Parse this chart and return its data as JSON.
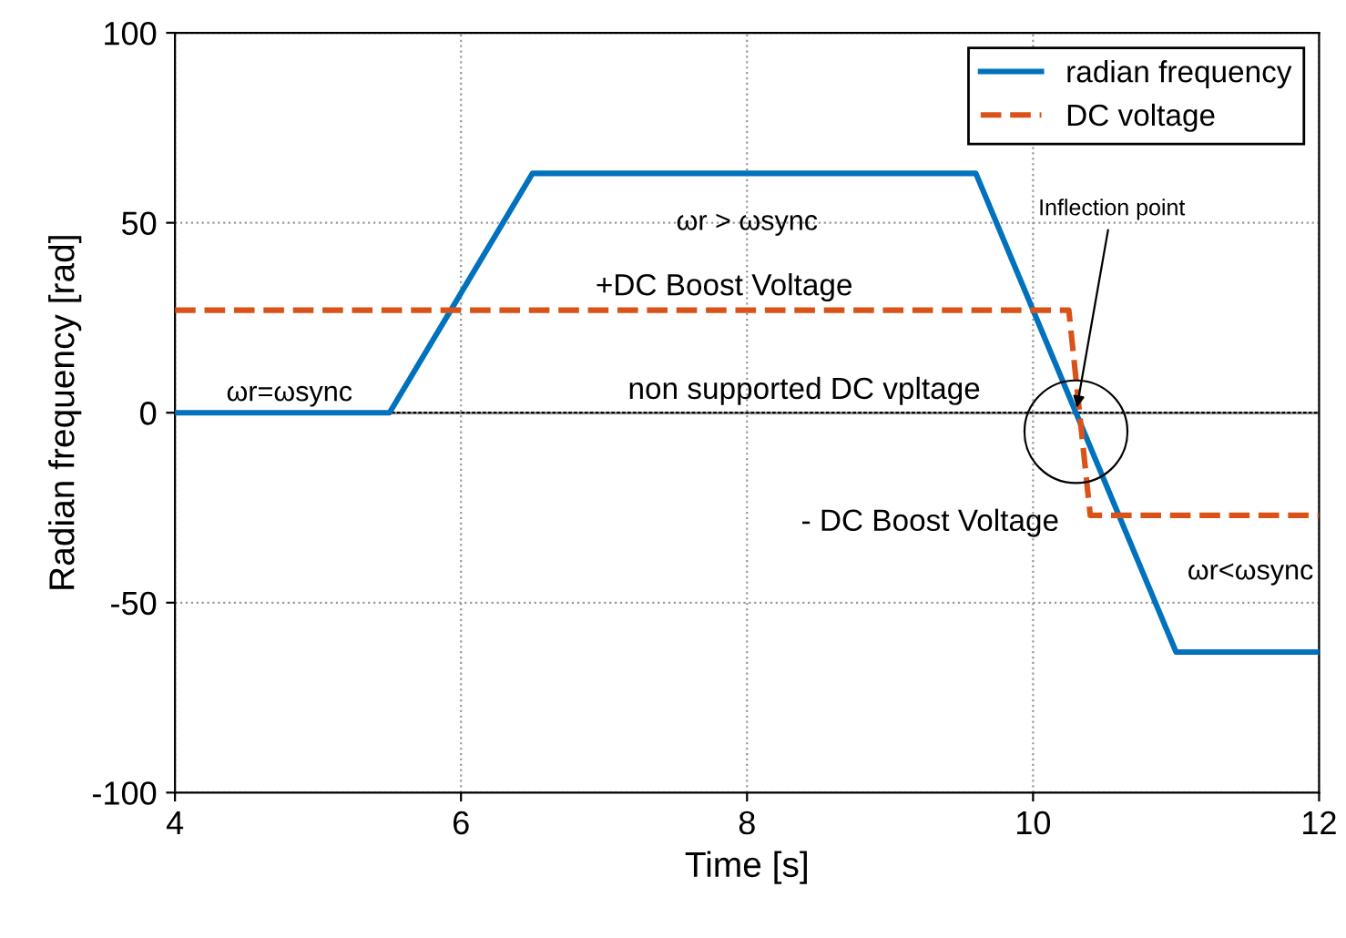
{
  "chart_data": {
    "type": "line",
    "xlabel": "Time [s]",
    "ylabel": "Radian frequency [rad]",
    "xlim": [
      4,
      12
    ],
    "ylim": [
      -100,
      100
    ],
    "xticks": [
      4,
      6,
      8,
      10,
      12
    ],
    "yticks": [
      -100,
      -50,
      0,
      50,
      100
    ],
    "grid": true,
    "legend": "top right",
    "series": [
      {
        "name": "radian frequency",
        "color": "#0072bd",
        "line_style": "solid",
        "x": [
          4,
          5.5,
          6.5,
          9.6,
          11,
          12
        ],
        "values": [
          0,
          0,
          63,
          63,
          -63,
          -63
        ]
      },
      {
        "name": "DC voltage",
        "color": "#d95319",
        "line_style": "dashed",
        "x": [
          4,
          10.25,
          10.4,
          12
        ],
        "values": [
          27,
          27,
          -27,
          -27
        ]
      }
    ],
    "ref_lines": [
      {
        "axis": "y",
        "value": 0,
        "label": "non supported DC vpltage",
        "color": "#000000"
      }
    ],
    "annotations": [
      "ωr=ωsync",
      "ωr > ωsync",
      "+DC Boost Voltage",
      "- DC Boost Voltage",
      "ωr<ωsync",
      {
        "text": "Inflection point",
        "x": 10.3,
        "y": 0
      }
    ]
  }
}
